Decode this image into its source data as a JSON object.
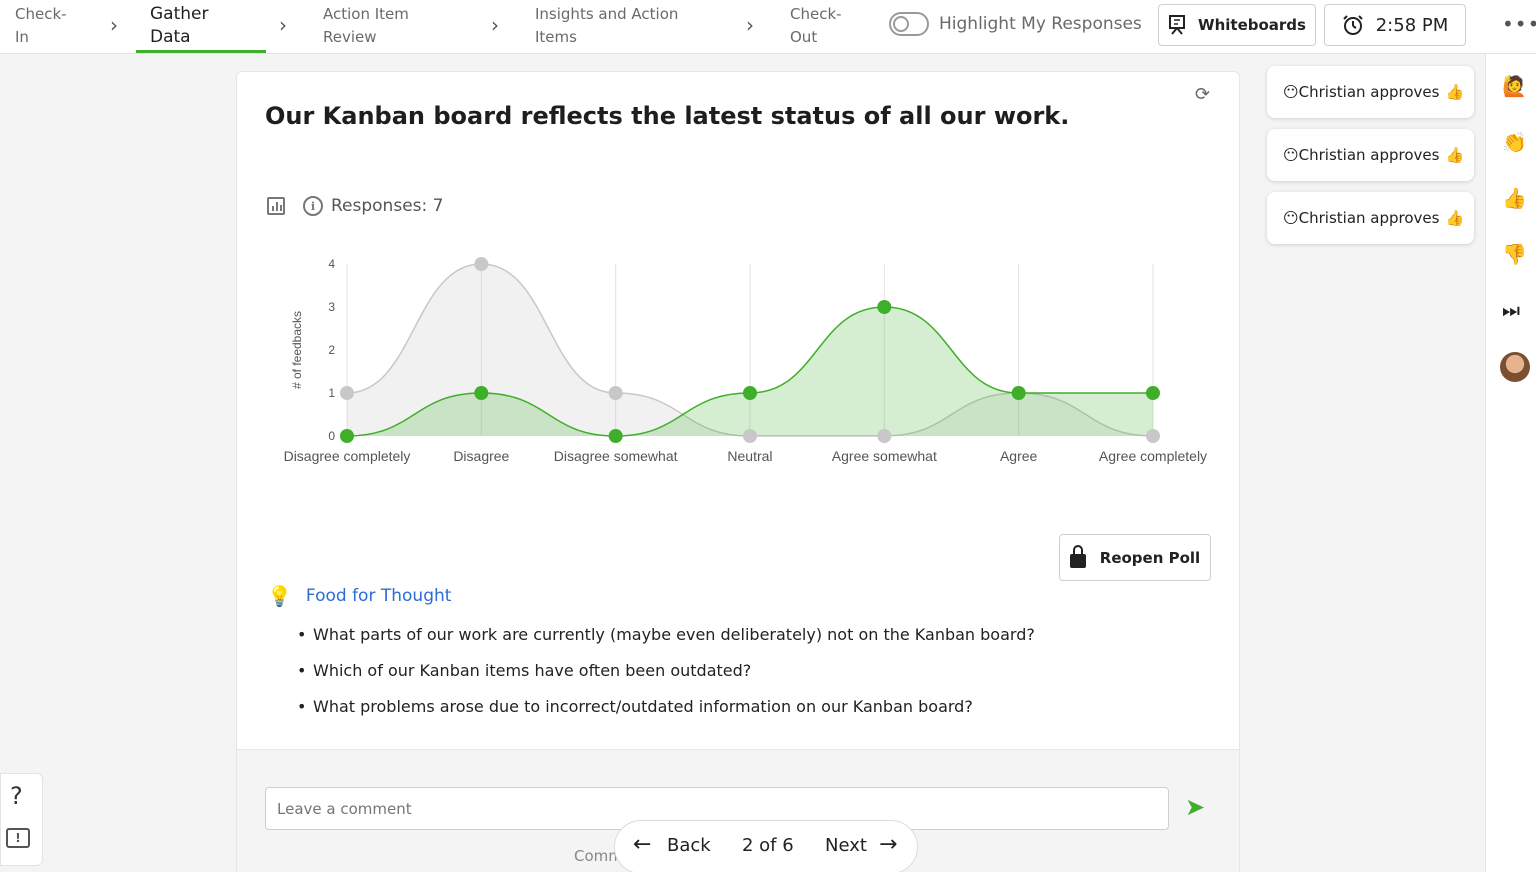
{
  "nav": {
    "steps": [
      {
        "label_1": "Check-",
        "label_2": "In"
      },
      {
        "label_1": "Gather",
        "label_2": "Data"
      },
      {
        "label_1": "Action Item",
        "label_2": "Review"
      },
      {
        "label_1": "Insights and Action",
        "label_2": "Items"
      },
      {
        "label_1": "Check-",
        "label_2": "Out"
      }
    ],
    "highlight_label": "Highlight My Responses",
    "whiteboards_label": "Whiteboards",
    "time": "2:58 PM"
  },
  "question": "Our Kanban board reflects the latest status of all our work.",
  "responses_label": "Responses: 7",
  "chart_data": {
    "type": "area",
    "categories": [
      "Disagree completely",
      "Disagree",
      "Disagree somewhat",
      "Neutral",
      "Agree somewhat",
      "Agree",
      "Agree completely"
    ],
    "ylabel": "# of feedbacks",
    "xlabel": "",
    "ylim": [
      0,
      4
    ],
    "yticks": [
      "0",
      "1",
      "2",
      "3",
      "4"
    ],
    "grid": "vertical",
    "series": [
      {
        "values": [
          1,
          4,
          1,
          0,
          0,
          1,
          0
        ],
        "color": "#c8c8c8"
      },
      {
        "values": [
          0,
          1,
          0,
          1,
          3,
          1,
          1
        ],
        "color": "#3fae2a"
      }
    ]
  },
  "reopen_label": "Reopen Poll",
  "food_for_thought": {
    "title": "Food for Thought",
    "items": [
      "What parts of our work are currently (maybe even deliberately) not on the Kanban board?",
      "Which of our Kanban items have often been outdated?",
      "What problems arose due to incorrect/outdated information on our Kanban board?"
    ]
  },
  "comment": {
    "placeholder": "Leave a comment",
    "partial_label": "Comm"
  },
  "pager": {
    "back": "Back",
    "page": "2 of 6",
    "next": "Next"
  },
  "approvals": [
    {
      "text": "Christian approves"
    },
    {
      "text": "Christian approves"
    },
    {
      "text": "Christian approves"
    }
  ],
  "rail_icons": [
    "🙋",
    "👏",
    "👍",
    "👎",
    "⏭"
  ],
  "help": {
    "q": "?",
    "fb": "!"
  },
  "colors": {
    "accent_green": "#3fae2a",
    "link_blue": "#2d6cd6"
  }
}
